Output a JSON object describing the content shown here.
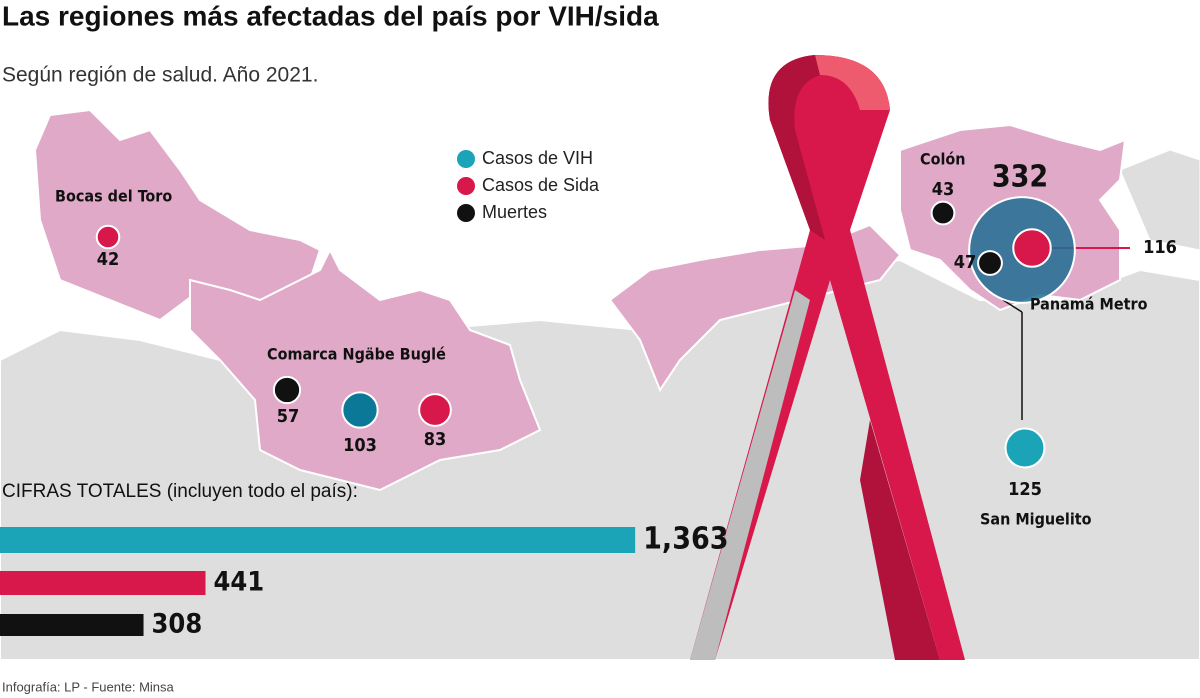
{
  "title": "Las regiones más afectadas del país por VIH/sida",
  "subtitle": "Según región de salud. Año 2021.",
  "legend": [
    {
      "label": "Casos de VIH",
      "color": "#1ba3b8"
    },
    {
      "label": "Casos de Sida",
      "color": "#d8174a"
    },
    {
      "label": "Muertes",
      "color": "#111111"
    }
  ],
  "regions": [
    {
      "name": "Bocas del Toro",
      "markers": [
        {
          "value": 42,
          "color": "#d8174a"
        }
      ]
    },
    {
      "name": "Comarca Ngäbe Buglé",
      "markers": [
        {
          "value": 57,
          "color": "#111111"
        },
        {
          "value": 103,
          "color": "#0a7896"
        },
        {
          "value": 83,
          "color": "#d8174a"
        }
      ]
    },
    {
      "name": "Colón",
      "markers": [
        {
          "value": 43,
          "color": "#111111"
        }
      ]
    },
    {
      "name": "Panamá Metro",
      "markers": [
        {
          "value": 332,
          "color": "#1f6f93"
        },
        {
          "value": 116,
          "color": "#d8174a"
        },
        {
          "value": 47,
          "color": "#111111"
        }
      ]
    },
    {
      "name": "San Miguelito",
      "markers": [
        {
          "value": 125,
          "color": "#1ba3b8"
        }
      ]
    }
  ],
  "chart_data": {
    "type": "bar",
    "title": "CIFRAS TOTALES (incluyen todo el país):",
    "values": [
      1363,
      441,
      308
    ],
    "value_labels": [
      "1,363",
      "441",
      "308"
    ],
    "colors": [
      "#1ba3b8",
      "#d8174a",
      "#111111"
    ]
  },
  "source": "Infografía: LP - Fuente: Minsa"
}
